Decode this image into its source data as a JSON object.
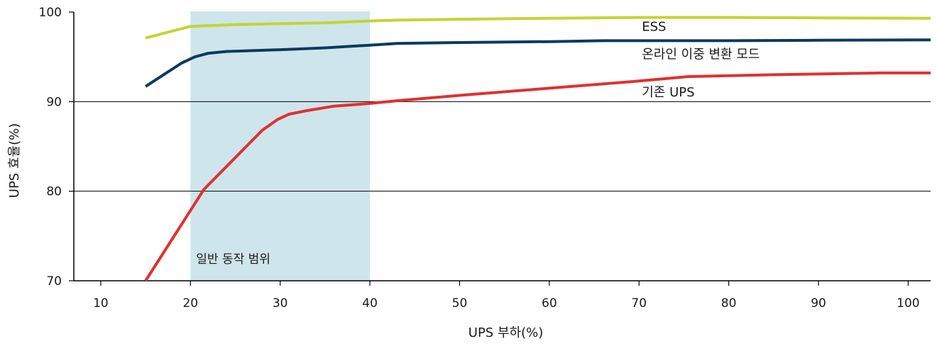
{
  "chart_data": {
    "type": "line",
    "xlabel": "UPS 부하(%)",
    "ylabel": "UPS 효율(%)",
    "xlim": [
      7,
      102.5
    ],
    "ylim": [
      70,
      100
    ],
    "x_ticks": [
      10,
      20,
      30,
      40,
      50,
      60,
      70,
      80,
      90,
      100
    ],
    "y_ticks": [
      70,
      80,
      90,
      100
    ],
    "gridlines_y": [
      80,
      90
    ],
    "band": {
      "label": "일반 동작 범위",
      "x_start": 20,
      "x_end": 40,
      "color": "#cfe5ec"
    },
    "series": [
      {
        "name": "ESS",
        "color": "#c4d433",
        "label_at": [
          70,
          97.9
        ],
        "points": [
          [
            15,
            97.1
          ],
          [
            20,
            98.4
          ],
          [
            25,
            98.6
          ],
          [
            30,
            98.7
          ],
          [
            35,
            98.8
          ],
          [
            40,
            99.0
          ],
          [
            43,
            99.1
          ],
          [
            50,
            99.2
          ],
          [
            60,
            99.3
          ],
          [
            70,
            99.4
          ],
          [
            80,
            99.4
          ],
          [
            90,
            99.35
          ],
          [
            102.5,
            99.3
          ]
        ]
      },
      {
        "name": "온라인 이중 변환 모드",
        "color": "#0b3a5e",
        "label_at": [
          70,
          94.8
        ],
        "points": [
          [
            15,
            91.7
          ],
          [
            17,
            93.0
          ],
          [
            19,
            94.3
          ],
          [
            20.5,
            95.0
          ],
          [
            22,
            95.4
          ],
          [
            24,
            95.6
          ],
          [
            30,
            95.8
          ],
          [
            35,
            96.0
          ],
          [
            40,
            96.3
          ],
          [
            43,
            96.5
          ],
          [
            50,
            96.6
          ],
          [
            60,
            96.7
          ],
          [
            66,
            96.8
          ],
          [
            80,
            96.8
          ],
          [
            90,
            96.85
          ],
          [
            102.5,
            96.9
          ]
        ]
      },
      {
        "name": "기존 UPS",
        "color": "#e03030",
        "label_at": [
          70,
          90.6
        ],
        "points": [
          [
            15,
            70.0
          ],
          [
            21.5,
            80.2
          ],
          [
            28,
            86.8
          ],
          [
            29.7,
            88.0
          ],
          [
            31,
            88.6
          ],
          [
            33,
            89.0
          ],
          [
            36,
            89.5
          ],
          [
            40,
            89.8
          ],
          [
            43,
            90.1
          ],
          [
            50,
            90.7
          ],
          [
            60,
            91.5
          ],
          [
            70,
            92.3
          ],
          [
            75.5,
            92.8
          ],
          [
            85,
            93.0
          ],
          [
            97,
            93.2
          ],
          [
            102.5,
            93.2
          ]
        ]
      }
    ]
  }
}
